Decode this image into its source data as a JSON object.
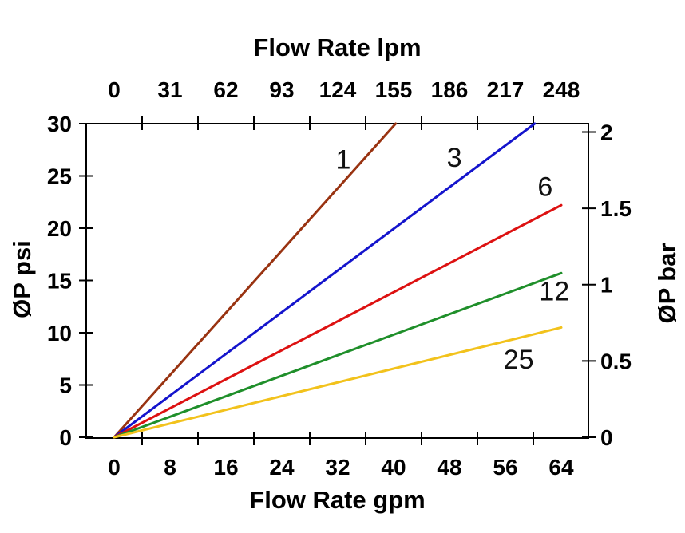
{
  "chart_data": {
    "type": "line",
    "axes": {
      "top": {
        "title": "Flow Rate lpm",
        "tick_labels": [
          "0",
          "31",
          "62",
          "93",
          "124",
          "155",
          "186",
          "217",
          "248"
        ]
      },
      "bottom": {
        "title": "Flow Rate gpm",
        "tick_labels": [
          "0",
          "8",
          "16",
          "24",
          "32",
          "40",
          "48",
          "56",
          "64"
        ]
      },
      "left": {
        "title": "ØP psi",
        "tick_labels": [
          "30",
          "25",
          "20",
          "15",
          "10",
          "5",
          "0"
        ],
        "tick_values": [
          30,
          25,
          20,
          15,
          10,
          5,
          0
        ]
      },
      "right": {
        "title": "ØP bar",
        "tick_labels": [
          "2",
          "1.5",
          "1",
          "0.5",
          "0"
        ],
        "tick_values": [
          2,
          1.5,
          1,
          0.5,
          0
        ]
      }
    },
    "x_range_gpm": [
      0,
      64
    ],
    "y_range_psi": [
      0,
      30
    ],
    "x_tick_values_gpm": [
      0,
      8,
      16,
      24,
      32,
      40,
      48,
      56,
      64
    ],
    "x_tick_marks_gpm": [
      4,
      12,
      20,
      28,
      36,
      44,
      52,
      60
    ],
    "psi_per_bar": 14.6,
    "grid": false,
    "legend": "inline labels next to each curve",
    "series": [
      {
        "label": "1",
        "color": "#993311",
        "points_gpm_psi": [
          [
            0,
            0
          ],
          [
            40.3,
            30.0
          ]
        ],
        "label_at_gpm_psi": [
          32.8,
          26.6
        ]
      },
      {
        "label": "3",
        "color": "#1414cc",
        "points_gpm_psi": [
          [
            0,
            0
          ],
          [
            60.2,
            30.0
          ]
        ],
        "label_at_gpm_psi": [
          48.7,
          26.8
        ]
      },
      {
        "label": "6",
        "color": "#dd1111",
        "points_gpm_psi": [
          [
            0,
            0
          ],
          [
            64.0,
            22.2
          ]
        ],
        "label_at_gpm_psi": [
          61.7,
          24.0
        ]
      },
      {
        "label": "12",
        "color": "#1f8f2a",
        "points_gpm_psi": [
          [
            0,
            0
          ],
          [
            64.0,
            15.7
          ]
        ],
        "label_at_gpm_psi": [
          63.0,
          14.0
        ]
      },
      {
        "label": "25",
        "color": "#f2c21c",
        "points_gpm_psi": [
          [
            0,
            0
          ],
          [
            64.0,
            10.5
          ]
        ],
        "label_at_gpm_psi": [
          57.9,
          7.5
        ]
      }
    ],
    "colors": {
      "axis": "#000000",
      "text": "#000000"
    }
  }
}
